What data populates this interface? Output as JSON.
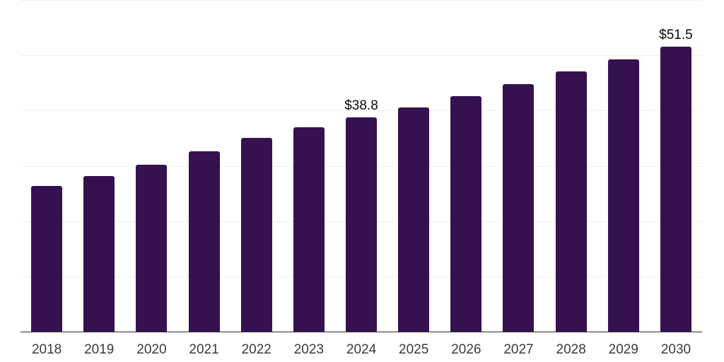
{
  "chart_data": {
    "type": "bar",
    "title": "",
    "xlabel": "",
    "ylabel": "",
    "categories": [
      "2018",
      "2019",
      "2020",
      "2021",
      "2022",
      "2023",
      "2024",
      "2025",
      "2026",
      "2027",
      "2028",
      "2029",
      "2030"
    ],
    "values": [
      26.3,
      28.1,
      30.2,
      32.6,
      35.0,
      37.0,
      38.8,
      40.6,
      42.6,
      44.8,
      47.1,
      49.3,
      51.5
    ],
    "bar_labels": [
      "",
      "",
      "",
      "",
      "",
      "",
      "$38.8",
      "",
      "",
      "",
      "",
      "",
      "$51.5"
    ],
    "value_prefix": "$",
    "ylim": [
      0,
      60
    ],
    "gridline_step": 10,
    "grid": "horizontal",
    "y_tick_labels_shown": false,
    "legend_position": "none"
  },
  "colors": {
    "bar": "#361150",
    "axis": "#2a2a2a",
    "gridline": "#f0f0f0",
    "tick_label": "#3a3a3a",
    "value_label": "#0a0a0a",
    "background": "#ffffff"
  }
}
